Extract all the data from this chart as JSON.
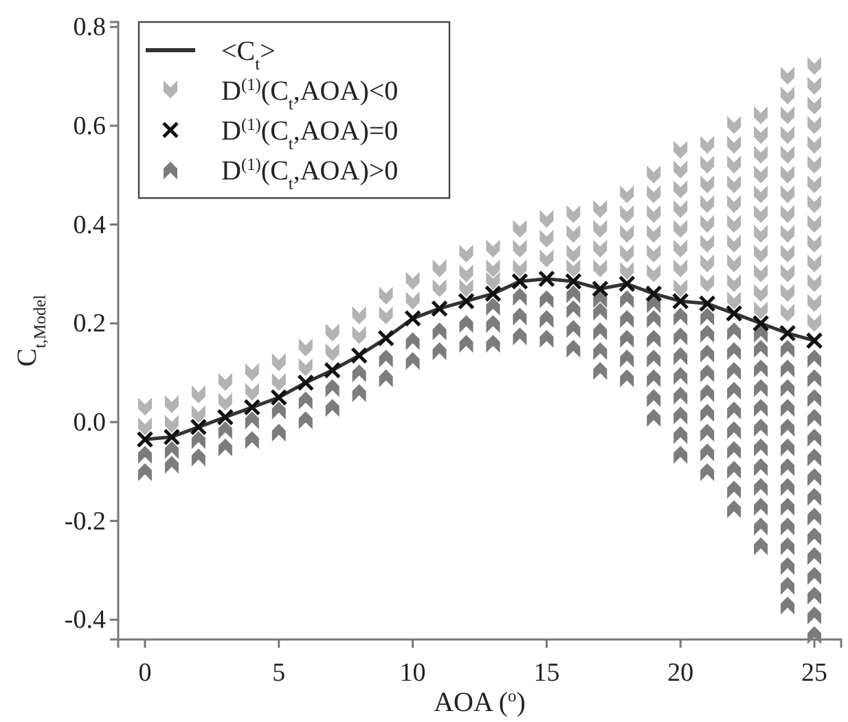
{
  "chart_data": {
    "type": "scatter",
    "xlabel": "AOA ($^{o}$)",
    "ylabel": "C$_{t,Model}$",
    "xlim": [
      -1,
      26
    ],
    "xticks": [
      0,
      5,
      10,
      15,
      20,
      25
    ],
    "ylim": [
      -0.44,
      0.81
    ],
    "yticks": [
      0.8,
      0.6,
      0.4,
      0.2,
      {
        "value": 0,
        "label": "0.0"
      },
      -0.2,
      -0.4
    ],
    "legend": "top left",
    "grid": false,
    "series": [
      {
        "name": "<C$_{t}$>",
        "type": "line",
        "color": "#333333",
        "marker": "none",
        "x": [
          0,
          1,
          2,
          3,
          4,
          5,
          6,
          7,
          8,
          9,
          10,
          11,
          12,
          13,
          14,
          15,
          16,
          17,
          18,
          19,
          20,
          21,
          22,
          23,
          24,
          25
        ],
        "values": [
          -0.035,
          -0.03,
          -0.01,
          0.01,
          0.03,
          0.05,
          0.08,
          0.105,
          0.135,
          0.17,
          0.21,
          0.23,
          0.245,
          0.26,
          0.285,
          0.29,
          0.285,
          0.27,
          0.28,
          0.26,
          0.245,
          0.24,
          0.22,
          0.2,
          0.18,
          0.165
        ]
      },
      {
        "name": "D$^{(1)}$(C$_{t}$,AOA)<0",
        "color": "#b3b3b3",
        "marker": "triangle",
        "x": [
          0,
          0,
          1,
          1,
          2,
          2,
          3,
          3,
          4,
          4,
          5,
          5,
          6,
          6,
          7,
          7,
          8,
          8,
          9,
          9,
          10,
          10,
          11,
          11,
          12,
          12,
          12,
          13,
          13,
          13,
          14,
          14,
          14,
          15,
          15,
          15,
          16,
          16,
          16,
          16,
          17,
          17,
          17,
          17,
          18,
          18,
          18,
          18,
          18,
          19,
          19,
          19,
          19,
          19,
          19,
          20,
          20,
          20,
          20,
          20,
          20,
          20,
          20,
          21,
          21,
          21,
          21,
          21,
          21,
          21,
          21,
          22,
          22,
          22,
          22,
          22,
          22,
          22,
          22,
          22,
          22,
          23,
          23,
          23,
          23,
          23,
          23,
          23,
          23,
          23,
          23,
          23,
          24,
          24,
          24,
          24,
          24,
          24,
          24,
          24,
          24,
          24,
          24,
          24,
          24,
          25,
          25,
          25,
          25,
          25,
          25,
          25,
          25,
          25,
          25,
          25,
          25,
          25,
          25
        ],
        "values": [
          0.03,
          -0.01,
          0.035,
          -0.005,
          0.055,
          0.015,
          0.08,
          0.04,
          0.1,
          0.06,
          0.12,
          0.08,
          0.15,
          0.11,
          0.18,
          0.14,
          0.215,
          0.175,
          0.255,
          0.215,
          0.285,
          0.245,
          0.31,
          0.27,
          0.34,
          0.3,
          0.27,
          0.35,
          0.31,
          0.285,
          0.39,
          0.35,
          0.31,
          0.41,
          0.37,
          0.33,
          0.42,
          0.38,
          0.34,
          0.31,
          0.43,
          0.39,
          0.35,
          0.31,
          0.46,
          0.42,
          0.38,
          0.34,
          0.305,
          0.5,
          0.46,
          0.42,
          0.38,
          0.34,
          0.3,
          0.55,
          0.51,
          0.47,
          0.43,
          0.39,
          0.35,
          0.31,
          0.27,
          0.56,
          0.52,
          0.48,
          0.44,
          0.4,
          0.36,
          0.32,
          0.28,
          0.6,
          0.56,
          0.52,
          0.48,
          0.44,
          0.4,
          0.36,
          0.32,
          0.28,
          0.245,
          0.62,
          0.58,
          0.54,
          0.5,
          0.46,
          0.42,
          0.38,
          0.34,
          0.3,
          0.26,
          0.225,
          0.7,
          0.66,
          0.62,
          0.58,
          0.54,
          0.5,
          0.46,
          0.42,
          0.38,
          0.34,
          0.3,
          0.26,
          0.22,
          0.72,
          0.68,
          0.64,
          0.6,
          0.56,
          0.52,
          0.48,
          0.44,
          0.4,
          0.36,
          0.32,
          0.28,
          0.24,
          0.2
        ]
      },
      {
        "name": "D$^{(1)}$(C$_{t}$,AOA)=0",
        "color": "#111111",
        "marker": "cross",
        "x": [
          0,
          1,
          2,
          3,
          4,
          5,
          6,
          7,
          8,
          9,
          10,
          11,
          12,
          13,
          14,
          15,
          16,
          17,
          18,
          19,
          20,
          21,
          22,
          23,
          24,
          25
        ],
        "values": [
          -0.035,
          -0.03,
          -0.01,
          0.01,
          0.03,
          0.05,
          0.08,
          0.105,
          0.135,
          0.17,
          0.21,
          0.23,
          0.245,
          0.26,
          0.285,
          0.29,
          0.285,
          0.27,
          0.28,
          0.26,
          0.245,
          0.24,
          0.22,
          0.2,
          0.18,
          0.165
        ]
      },
      {
        "name": "D$^{(1)}$(C$_{t}$,AOA)>0",
        "color": "#7c7c7c",
        "marker": "triangle",
        "x": [
          0,
          0,
          1,
          1,
          2,
          2,
          3,
          3,
          4,
          4,
          5,
          5,
          6,
          6,
          7,
          7,
          8,
          8,
          9,
          9,
          10,
          10,
          11,
          11,
          12,
          12,
          13,
          13,
          13,
          14,
          14,
          14,
          15,
          15,
          15,
          16,
          16,
          16,
          16,
          17,
          17,
          17,
          17,
          17,
          18,
          18,
          18,
          18,
          18,
          19,
          19,
          19,
          19,
          19,
          19,
          19,
          20,
          20,
          20,
          20,
          20,
          20,
          20,
          20,
          21,
          21,
          21,
          21,
          21,
          21,
          21,
          21,
          21,
          22,
          22,
          22,
          22,
          22,
          22,
          22,
          22,
          22,
          22,
          23,
          23,
          23,
          23,
          23,
          23,
          23,
          23,
          23,
          23,
          23,
          23,
          24,
          24,
          24,
          24,
          24,
          24,
          24,
          24,
          24,
          24,
          24,
          24,
          24,
          24,
          25,
          25,
          25,
          25,
          25,
          25,
          25,
          25,
          25,
          25,
          25,
          25,
          25,
          25,
          25
        ],
        "values": [
          -0.1,
          -0.065,
          -0.085,
          -0.055,
          -0.07,
          -0.035,
          -0.05,
          -0.015,
          -0.035,
          0.005,
          -0.02,
          0.025,
          0.005,
          0.045,
          0.03,
          0.07,
          0.06,
          0.1,
          0.09,
          0.13,
          0.125,
          0.165,
          0.145,
          0.185,
          0.16,
          0.2,
          0.16,
          0.2,
          0.235,
          0.175,
          0.215,
          0.255,
          0.17,
          0.21,
          0.25,
          0.15,
          0.19,
          0.23,
          0.26,
          0.105,
          0.145,
          0.185,
          0.225,
          0.25,
          0.09,
          0.13,
          0.17,
          0.21,
          0.25,
          0.01,
          0.05,
          0.09,
          0.13,
          0.17,
          0.21,
          0.24,
          -0.065,
          -0.025,
          0.015,
          0.055,
          0.095,
          0.135,
          0.175,
          0.215,
          -0.1,
          -0.06,
          -0.02,
          0.02,
          0.06,
          0.1,
          0.14,
          0.18,
          0.215,
          -0.175,
          -0.135,
          -0.095,
          -0.055,
          -0.015,
          0.025,
          0.065,
          0.105,
          0.145,
          0.185,
          -0.25,
          -0.21,
          -0.17,
          -0.13,
          -0.09,
          -0.05,
          -0.01,
          0.03,
          0.07,
          0.11,
          0.15,
          0.18,
          -0.37,
          -0.33,
          -0.29,
          -0.25,
          -0.21,
          -0.17,
          -0.13,
          -0.09,
          -0.05,
          -0.01,
          0.03,
          0.07,
          0.11,
          0.15,
          -0.43,
          -0.39,
          -0.35,
          -0.31,
          -0.27,
          -0.23,
          -0.19,
          -0.15,
          -0.11,
          -0.07,
          -0.03,
          0.01,
          0.05,
          0.09,
          0.13
        ]
      }
    ]
  }
}
